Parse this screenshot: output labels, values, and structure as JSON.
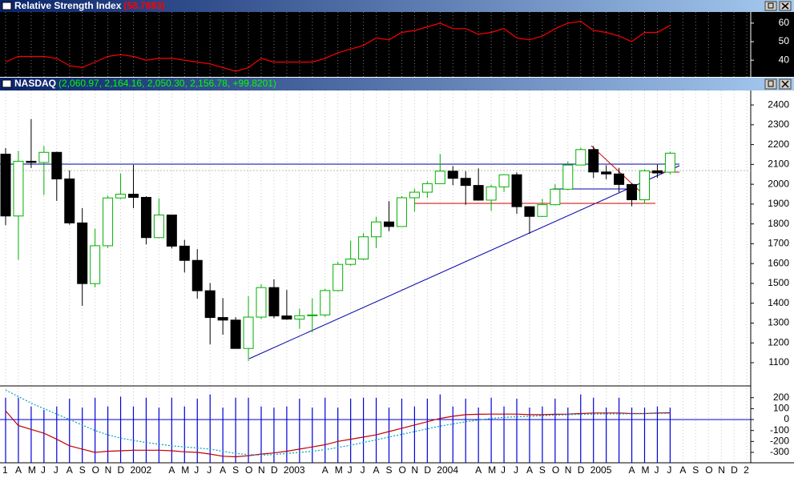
{
  "chart_data": [
    {
      "type": "line",
      "title": "Relative Strength Index",
      "title_value": "(58.7883)",
      "color": "#ff0000",
      "background": "#000000",
      "ylim": [
        31,
        66
      ],
      "yticks": [
        40,
        50,
        60
      ],
      "values": [
        39,
        42,
        42,
        42,
        41,
        37,
        36,
        39,
        42,
        43,
        42,
        40,
        41,
        41,
        40,
        39,
        38,
        36,
        34,
        36,
        41,
        39,
        39,
        39,
        39,
        41,
        44,
        46,
        48,
        52,
        51,
        55,
        56,
        58,
        60,
        57,
        57,
        54,
        55,
        57,
        52,
        51,
        53,
        57,
        60,
        61,
        56,
        55,
        53,
        50,
        55,
        55,
        58.7883,
        null,
        null,
        null,
        null,
        null,
        null
      ]
    },
    {
      "type": "candlestick",
      "title": "NASDAQ",
      "title_values": "(2,060.97, 2,164.16, 2,050.30, 2,156.78, +99.8201)",
      "up_color": "#00b000",
      "down_color": "#000000",
      "ylim": [
        983,
        2473
      ],
      "yticks": [
        1100,
        1200,
        1300,
        1400,
        1500,
        1600,
        1700,
        1800,
        1900,
        2000,
        2100,
        2200,
        2300,
        2400
      ],
      "open": [
        2152,
        1840,
        2116,
        2110,
        2161,
        2027,
        1805,
        1499,
        1690,
        1931,
        1950,
        1934,
        1731,
        1845,
        1688,
        1616,
        1463,
        1328,
        1315,
        1172,
        1330,
        1479,
        1336,
        1320,
        1337,
        1341,
        1464,
        1596,
        1623,
        1735,
        1810,
        1787,
        1932,
        1960,
        2003,
        2066,
        2030,
        1994,
        1920,
        1987,
        2048,
        1887,
        1838,
        1897,
        1975,
        2097,
        2175,
        2062,
        2052,
        1999,
        1922,
        2068,
        2060.97,
        null,
        null,
        null,
        null,
        null,
        null
      ],
      "high": [
        2183,
        2168,
        2329,
        2193,
        2164,
        2070,
        1880,
        1776,
        1942,
        2055,
        2098,
        1940,
        1929,
        1845,
        1720,
        1673,
        1502,
        1426,
        1330,
        1435,
        1496,
        1521,
        1467,
        1372,
        1425,
        1473,
        1609,
        1716,
        1754,
        1836,
        1915,
        1941,
        1978,
        2015,
        2153,
        2092,
        2066,
        2080,
        1998,
        2050,
        2060,
        1887,
        1927,
        2000,
        2115,
        2185,
        2192,
        2096,
        2082,
        2005,
        2076,
        2099,
        2164.16,
        null,
        null,
        null,
        null,
        null,
        null
      ],
      "low": [
        1794,
        1619,
        2082,
        1946,
        1916,
        1796,
        1387,
        1480,
        1680,
        1926,
        1880,
        1697,
        1729,
        1676,
        1555,
        1423,
        1192,
        1241,
        1172,
        1108,
        1319,
        1324,
        1316,
        1271,
        1253,
        1331,
        1460,
        1589,
        1618,
        1678,
        1764,
        1786,
        1862,
        1931,
        2002,
        1995,
        1896,
        1917,
        1865,
        1961,
        1851,
        1750,
        1835,
        1894,
        1970,
        2097,
        2031,
        2025,
        1960,
        1889,
        1904,
        2032,
        2050.3,
        null,
        null,
        null,
        null,
        null,
        null
      ],
      "close": [
        1840,
        2116,
        2110,
        2161,
        2027,
        1805,
        1499,
        1690,
        1931,
        1950,
        1934,
        1731,
        1845,
        1688,
        1616,
        1463,
        1328,
        1315,
        1172,
        1330,
        1479,
        1336,
        1320,
        1337,
        1341,
        1464,
        1596,
        1623,
        1735,
        1810,
        1787,
        1932,
        1960,
        2003,
        2066,
        2030,
        1994,
        1920,
        1987,
        2048,
        1887,
        1838,
        1897,
        1975,
        2097,
        2175,
        2062,
        2052,
        1999,
        1922,
        2068,
        2057,
        2156.78,
        null,
        null,
        null,
        null,
        null,
        null
      ]
    },
    {
      "type": "line",
      "ylim": [
        -395,
        300
      ],
      "yticks": [
        200,
        100,
        0,
        -100,
        -200,
        -300
      ],
      "zero_line_color": "#0000cc",
      "categories": [
        "1",
        "A",
        "M",
        "J",
        "J",
        "A",
        "S",
        "O",
        "N",
        "D",
        "2002",
        null,
        null,
        "A",
        "M",
        "J",
        "J",
        "A",
        "S",
        "O",
        "N",
        "D",
        "2003",
        null,
        null,
        "A",
        "M",
        "J",
        "J",
        "A",
        "S",
        "O",
        "N",
        "D",
        "2004",
        null,
        null,
        "A",
        "M",
        "J",
        "J",
        "A",
        "S",
        "O",
        "N",
        "D",
        "2005",
        null,
        null,
        "A",
        "M",
        "J",
        "J",
        "A",
        "S",
        "O",
        "N",
        "D",
        "2"
      ],
      "series": [
        {
          "type": "bar",
          "color": "#0000dd",
          "values": [
            200,
            200,
            120,
            90,
            120,
            190,
            110,
            200,
            120,
            210,
            120,
            200,
            110,
            200,
            120,
            190,
            230,
            110,
            200,
            200,
            120,
            110,
            120,
            190,
            110,
            200,
            110,
            190,
            200,
            200,
            110,
            190,
            120,
            190,
            230,
            120,
            190,
            110,
            200,
            120,
            190,
            110,
            120,
            190,
            110,
            230,
            200,
            110,
            200,
            110,
            110,
            120,
            110,
            null,
            null,
            null,
            null,
            null,
            null
          ]
        },
        {
          "type": "line",
          "color": "#c00000",
          "values": [
            80,
            -55,
            -90,
            -125,
            -180,
            -240,
            -270,
            -300,
            -290,
            -285,
            -280,
            -280,
            -280,
            -285,
            -295,
            -300,
            -315,
            -335,
            -340,
            -330,
            -315,
            -305,
            -290,
            -270,
            -250,
            -230,
            -200,
            -180,
            -160,
            -140,
            -110,
            -80,
            -50,
            -20,
            10,
            30,
            45,
            48,
            50,
            50,
            50,
            45,
            45,
            48,
            50,
            55,
            60,
            60,
            60,
            55,
            55,
            60,
            62,
            null,
            null,
            null,
            null,
            null,
            null
          ]
        },
        {
          "type": "line",
          "color": "#00a0c0",
          "dashed": true,
          "values": [
            270,
            210,
            150,
            100,
            50,
            0,
            -50,
            -100,
            -140,
            -170,
            -190,
            -210,
            -225,
            -240,
            -250,
            -260,
            -270,
            -290,
            -310,
            -320,
            -325,
            -320,
            -310,
            -300,
            -290,
            -275,
            -255,
            -235,
            -210,
            -185,
            -160,
            -135,
            -110,
            -85,
            -60,
            -40,
            -20,
            -5,
            10,
            20,
            25,
            30,
            35,
            40,
            45,
            48,
            50,
            52,
            52,
            53,
            54,
            56,
            58,
            null,
            null,
            null,
            null,
            null,
            null
          ]
        }
      ]
    }
  ]
}
